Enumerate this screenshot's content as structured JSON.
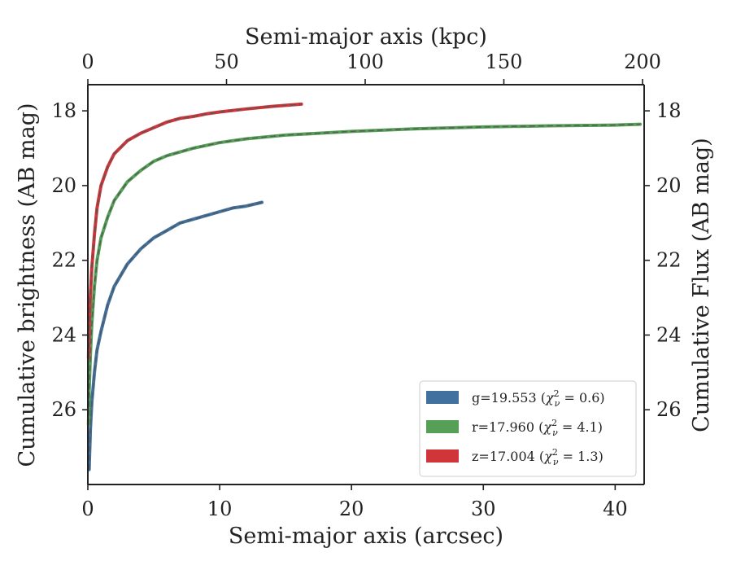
{
  "chart_data": {
    "type": "line",
    "xlabel": "Semi-major axis (arcsec)",
    "ylabel": "Cumulative brightness (AB mag)",
    "x2label": "Semi-major axis (kpc)",
    "y2label": "Cumulative Flux (AB mag)",
    "xlim": [
      0,
      42.2
    ],
    "ylim": [
      28,
      17.3
    ],
    "x2lim": [
      0,
      200
    ],
    "xticks": [
      0,
      10,
      20,
      30,
      40
    ],
    "yticks": [
      18,
      20,
      22,
      24,
      26
    ],
    "x2ticks": [
      0,
      50,
      100,
      150,
      200
    ],
    "grid": false,
    "legend_position": "lower-right",
    "series": [
      {
        "name": "g=19.553 (χ²ν = 0.6)",
        "band": "g",
        "mag": "19.553",
        "chi2": "0.6",
        "color": "#41719f",
        "x": [
          0.1,
          0.2,
          0.3,
          0.5,
          0.7,
          1.0,
          1.5,
          2.0,
          3.0,
          4.0,
          5.0,
          6.0,
          7.0,
          8.0,
          9.0,
          10.0,
          11.0,
          12.0,
          13.2
        ],
        "y": [
          27.6,
          26.5,
          25.8,
          25.0,
          24.4,
          23.9,
          23.2,
          22.7,
          22.1,
          21.7,
          21.4,
          21.2,
          21.0,
          20.9,
          20.8,
          20.7,
          20.6,
          20.55,
          20.45
        ]
      },
      {
        "name": "r=17.960 (χ²ν = 4.1)",
        "band": "r",
        "mag": "17.960",
        "chi2": "4.1",
        "color": "#55a056",
        "x": [
          0.05,
          0.1,
          0.2,
          0.3,
          0.5,
          0.7,
          1.0,
          1.5,
          2.0,
          3.0,
          4.0,
          5.0,
          6.0,
          7.0,
          8.0,
          10.0,
          12.0,
          15.0,
          20.0,
          25.0,
          30.0,
          35.0,
          40.0,
          41.9
        ],
        "y": [
          26.4,
          25.5,
          24.5,
          23.7,
          22.7,
          22.0,
          21.4,
          20.85,
          20.4,
          19.9,
          19.6,
          19.35,
          19.2,
          19.1,
          19.0,
          18.85,
          18.75,
          18.65,
          18.55,
          18.48,
          18.43,
          18.4,
          18.38,
          18.36
        ]
      },
      {
        "name": "z=17.004 (χ²ν = 1.3)",
        "band": "z",
        "mag": "17.004",
        "chi2": "1.3",
        "color": "#d0353a",
        "x": [
          0.05,
          0.1,
          0.2,
          0.3,
          0.5,
          0.7,
          1.0,
          1.5,
          2.0,
          3.0,
          4.0,
          5.0,
          6.0,
          7.0,
          8.0,
          9.0,
          10.0,
          12.0,
          14.0,
          16.2
        ],
        "y": [
          24.6,
          23.8,
          22.9,
          22.2,
          21.3,
          20.6,
          20.0,
          19.5,
          19.15,
          18.8,
          18.6,
          18.45,
          18.3,
          18.2,
          18.15,
          18.08,
          18.03,
          17.95,
          17.88,
          17.82
        ]
      }
    ]
  }
}
